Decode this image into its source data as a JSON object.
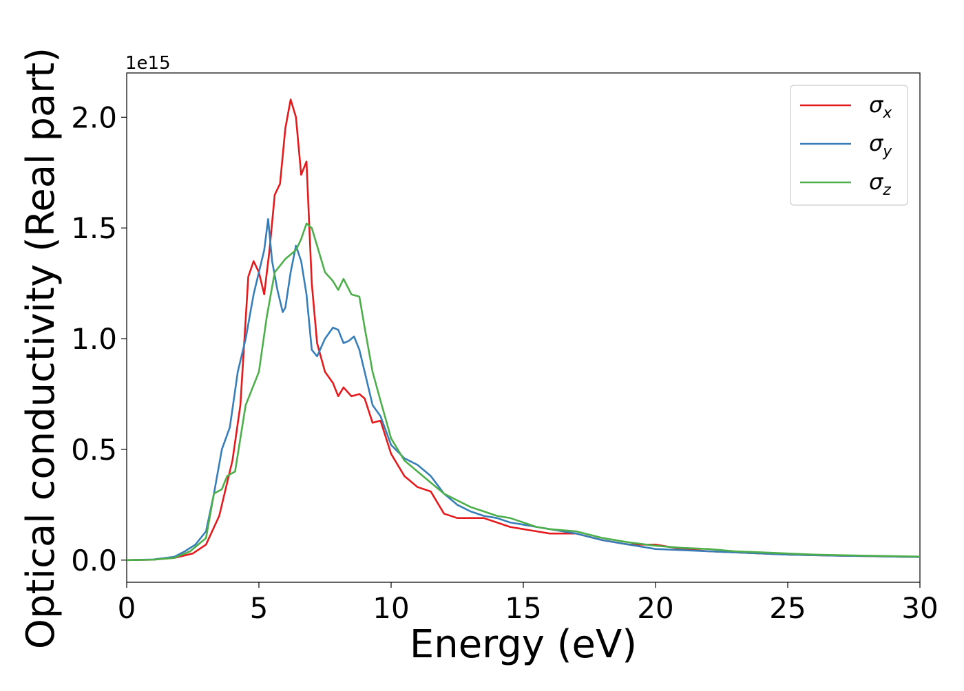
{
  "chart_data": {
    "type": "line",
    "xlabel": "Energy (eV)",
    "ylabel": "Optical conductivity (Real part)",
    "y_offset_text": "1e15",
    "xlim": [
      0,
      30
    ],
    "ylim": [
      -0.1,
      2.2
    ],
    "x_ticks": [
      0,
      5,
      10,
      15,
      20,
      25,
      30
    ],
    "x_tick_labels": [
      "0",
      "5",
      "10",
      "15",
      "20",
      "25",
      "30"
    ],
    "y_ticks": [
      0.0,
      0.5,
      1.0,
      1.5,
      2.0
    ],
    "y_tick_labels": [
      "0.0",
      "0.5",
      "1.0",
      "1.5",
      "2.0"
    ],
    "grid": false,
    "legend_position": "top-right",
    "series": [
      {
        "name": "σx",
        "symbol": "σ",
        "subscript": "x",
        "color": "#e41a1c",
        "x": [
          0,
          1,
          1.8,
          2.5,
          3.0,
          3.5,
          4.0,
          4.3,
          4.6,
          4.8,
          5.0,
          5.2,
          5.4,
          5.6,
          5.8,
          6.0,
          6.2,
          6.4,
          6.6,
          6.8,
          7.0,
          7.2,
          7.5,
          7.8,
          8.0,
          8.2,
          8.5,
          8.8,
          9.0,
          9.3,
          9.6,
          10.0,
          10.5,
          11.0,
          11.5,
          12.0,
          12.5,
          13.0,
          13.5,
          14.0,
          14.5,
          15.0,
          15.5,
          16.0,
          17.0,
          18.0,
          19.0,
          20.0,
          21.0,
          22.0,
          23.0,
          24.0,
          25.0,
          26.0,
          27.0,
          28.0,
          29.0,
          30.0
        ],
        "values": [
          0.0,
          0.002,
          0.01,
          0.03,
          0.07,
          0.2,
          0.45,
          0.7,
          1.28,
          1.35,
          1.3,
          1.2,
          1.4,
          1.65,
          1.7,
          1.95,
          2.08,
          2.0,
          1.74,
          1.8,
          1.25,
          0.98,
          0.85,
          0.8,
          0.74,
          0.78,
          0.74,
          0.75,
          0.73,
          0.62,
          0.63,
          0.48,
          0.38,
          0.33,
          0.31,
          0.21,
          0.19,
          0.19,
          0.19,
          0.17,
          0.15,
          0.14,
          0.13,
          0.12,
          0.12,
          0.09,
          0.07,
          0.07,
          0.05,
          0.04,
          0.035,
          0.03,
          0.025,
          0.022,
          0.02,
          0.018,
          0.016,
          0.014
        ]
      },
      {
        "name": "σy",
        "symbol": "σ",
        "subscript": "y",
        "color": "#377eb8",
        "x": [
          0,
          1,
          1.8,
          2.2,
          2.6,
          3.0,
          3.3,
          3.6,
          3.9,
          4.2,
          4.5,
          4.8,
          5.0,
          5.2,
          5.35,
          5.5,
          5.7,
          5.9,
          6.0,
          6.2,
          6.4,
          6.6,
          6.8,
          7.0,
          7.2,
          7.5,
          7.8,
          8.0,
          8.2,
          8.4,
          8.6,
          8.8,
          9.0,
          9.3,
          9.6,
          10.0,
          10.5,
          11.0,
          11.5,
          12.0,
          12.5,
          13.0,
          13.5,
          14.0,
          14.5,
          15.0,
          15.5,
          16.0,
          17.0,
          18.0,
          19.0,
          20.0,
          21.0,
          22.0,
          23.0,
          24.0,
          25.0,
          26.0,
          27.0,
          28.0,
          29.0,
          30.0
        ],
        "values": [
          0.0,
          0.003,
          0.015,
          0.04,
          0.07,
          0.13,
          0.3,
          0.5,
          0.6,
          0.85,
          1.0,
          1.2,
          1.3,
          1.4,
          1.54,
          1.35,
          1.22,
          1.12,
          1.14,
          1.3,
          1.42,
          1.35,
          1.2,
          0.95,
          0.92,
          1.0,
          1.05,
          1.04,
          0.98,
          0.99,
          1.01,
          0.95,
          0.85,
          0.7,
          0.65,
          0.52,
          0.46,
          0.43,
          0.38,
          0.3,
          0.25,
          0.22,
          0.2,
          0.19,
          0.17,
          0.16,
          0.15,
          0.14,
          0.12,
          0.09,
          0.07,
          0.05,
          0.045,
          0.04,
          0.035,
          0.03,
          0.025,
          0.022,
          0.02,
          0.018,
          0.016,
          0.014
        ]
      },
      {
        "name": "σz",
        "symbol": "σ",
        "subscript": "z",
        "color": "#4daf4a",
        "x": [
          0,
          1,
          1.8,
          2.4,
          3.0,
          3.3,
          3.6,
          3.8,
          4.1,
          4.5,
          5.0,
          5.3,
          5.6,
          5.8,
          6.0,
          6.2,
          6.4,
          6.6,
          6.8,
          7.0,
          7.2,
          7.5,
          7.8,
          8.0,
          8.2,
          8.5,
          8.8,
          9.0,
          9.3,
          9.6,
          10.0,
          10.5,
          11.0,
          11.5,
          12.0,
          12.5,
          13.0,
          13.5,
          14.0,
          14.5,
          15.0,
          15.5,
          16.0,
          17.0,
          18.0,
          19.0,
          20.0,
          21.0,
          22.0,
          23.0,
          24.0,
          25.0,
          26.0,
          27.0,
          28.0,
          29.0,
          30.0
        ],
        "values": [
          0.0,
          0.002,
          0.01,
          0.04,
          0.1,
          0.3,
          0.32,
          0.38,
          0.4,
          0.7,
          0.85,
          1.1,
          1.3,
          1.33,
          1.36,
          1.38,
          1.4,
          1.45,
          1.52,
          1.5,
          1.42,
          1.3,
          1.26,
          1.22,
          1.27,
          1.2,
          1.19,
          1.05,
          0.85,
          0.72,
          0.55,
          0.45,
          0.4,
          0.35,
          0.3,
          0.27,
          0.24,
          0.22,
          0.2,
          0.19,
          0.17,
          0.15,
          0.14,
          0.13,
          0.1,
          0.08,
          0.065,
          0.055,
          0.05,
          0.04,
          0.035,
          0.03,
          0.025,
          0.022,
          0.02,
          0.018,
          0.016
        ]
      }
    ]
  }
}
